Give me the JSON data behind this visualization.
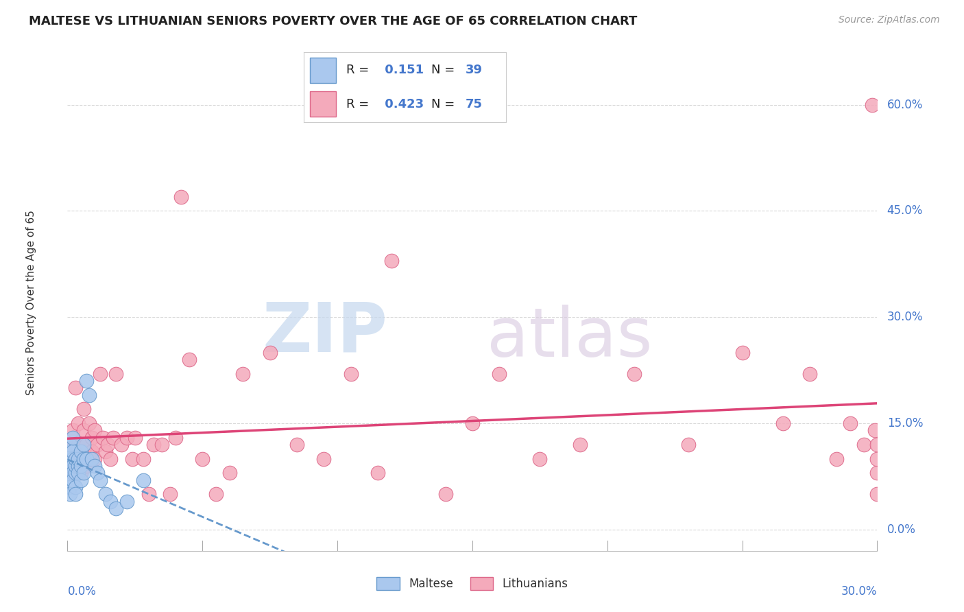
{
  "title": "MALTESE VS LITHUANIAN SENIORS POVERTY OVER THE AGE OF 65 CORRELATION CHART",
  "source": "Source: ZipAtlas.com",
  "ylabel": "Seniors Poverty Over the Age of 65",
  "xlim": [
    0.0,
    0.3
  ],
  "ylim": [
    -0.03,
    0.67
  ],
  "yticks": [
    0.0,
    0.15,
    0.3,
    0.45,
    0.6
  ],
  "ytick_labels": [
    "0.0%",
    "15.0%",
    "30.0%",
    "45.0%",
    "60.0%"
  ],
  "xtick_left": "0.0%",
  "xtick_right": "30.0%",
  "background_color": "#ffffff",
  "grid_color": "#d8d8d8",
  "maltese_color": "#aac8ee",
  "maltese_edge_color": "#6699cc",
  "lithuanian_color": "#f4aabb",
  "lithuanian_edge_color": "#dd6688",
  "maltese_R": 0.151,
  "maltese_N": 39,
  "lithuanian_R": 0.423,
  "lithuanian_N": 75,
  "legend_text_color": "#4477cc",
  "regression_maltese_color": "#6699cc",
  "regression_lithuanian_color": "#dd4477",
  "watermark_zip_color": "#c5d8ee",
  "watermark_atlas_color": "#d8c8e0",
  "maltese_x": [
    0.001,
    0.001,
    0.001,
    0.001,
    0.001,
    0.001,
    0.001,
    0.002,
    0.002,
    0.002,
    0.002,
    0.002,
    0.002,
    0.003,
    0.003,
    0.003,
    0.003,
    0.003,
    0.004,
    0.004,
    0.004,
    0.005,
    0.005,
    0.005,
    0.006,
    0.006,
    0.006,
    0.007,
    0.007,
    0.008,
    0.009,
    0.01,
    0.011,
    0.012,
    0.014,
    0.016,
    0.018,
    0.022,
    0.028
  ],
  "maltese_y": [
    0.09,
    0.1,
    0.11,
    0.12,
    0.07,
    0.06,
    0.05,
    0.1,
    0.09,
    0.08,
    0.07,
    0.11,
    0.13,
    0.08,
    0.09,
    0.1,
    0.06,
    0.05,
    0.09,
    0.1,
    0.08,
    0.07,
    0.09,
    0.11,
    0.1,
    0.12,
    0.08,
    0.1,
    0.21,
    0.19,
    0.1,
    0.09,
    0.08,
    0.07,
    0.05,
    0.04,
    0.03,
    0.04,
    0.07
  ],
  "lithuanian_x": [
    0.001,
    0.001,
    0.001,
    0.002,
    0.002,
    0.002,
    0.003,
    0.003,
    0.003,
    0.004,
    0.004,
    0.004,
    0.005,
    0.005,
    0.005,
    0.006,
    0.006,
    0.006,
    0.007,
    0.007,
    0.008,
    0.008,
    0.009,
    0.009,
    0.01,
    0.01,
    0.011,
    0.012,
    0.013,
    0.014,
    0.015,
    0.016,
    0.017,
    0.018,
    0.02,
    0.022,
    0.024,
    0.025,
    0.028,
    0.03,
    0.032,
    0.035,
    0.038,
    0.04,
    0.042,
    0.045,
    0.05,
    0.055,
    0.06,
    0.065,
    0.075,
    0.085,
    0.095,
    0.105,
    0.115,
    0.12,
    0.14,
    0.15,
    0.16,
    0.175,
    0.19,
    0.21,
    0.23,
    0.25,
    0.265,
    0.275,
    0.285,
    0.29,
    0.295,
    0.298,
    0.299,
    0.3,
    0.3,
    0.3,
    0.3
  ],
  "lithuanian_y": [
    0.09,
    0.1,
    0.12,
    0.1,
    0.12,
    0.14,
    0.08,
    0.12,
    0.2,
    0.09,
    0.12,
    0.15,
    0.08,
    0.1,
    0.12,
    0.11,
    0.14,
    0.17,
    0.09,
    0.12,
    0.1,
    0.15,
    0.13,
    0.11,
    0.1,
    0.14,
    0.12,
    0.22,
    0.13,
    0.11,
    0.12,
    0.1,
    0.13,
    0.22,
    0.12,
    0.13,
    0.1,
    0.13,
    0.1,
    0.05,
    0.12,
    0.12,
    0.05,
    0.13,
    0.47,
    0.24,
    0.1,
    0.05,
    0.08,
    0.22,
    0.25,
    0.12,
    0.1,
    0.22,
    0.08,
    0.38,
    0.05,
    0.15,
    0.22,
    0.1,
    0.12,
    0.22,
    0.12,
    0.25,
    0.15,
    0.22,
    0.1,
    0.15,
    0.12,
    0.6,
    0.14,
    0.08,
    0.12,
    0.1,
    0.05
  ]
}
